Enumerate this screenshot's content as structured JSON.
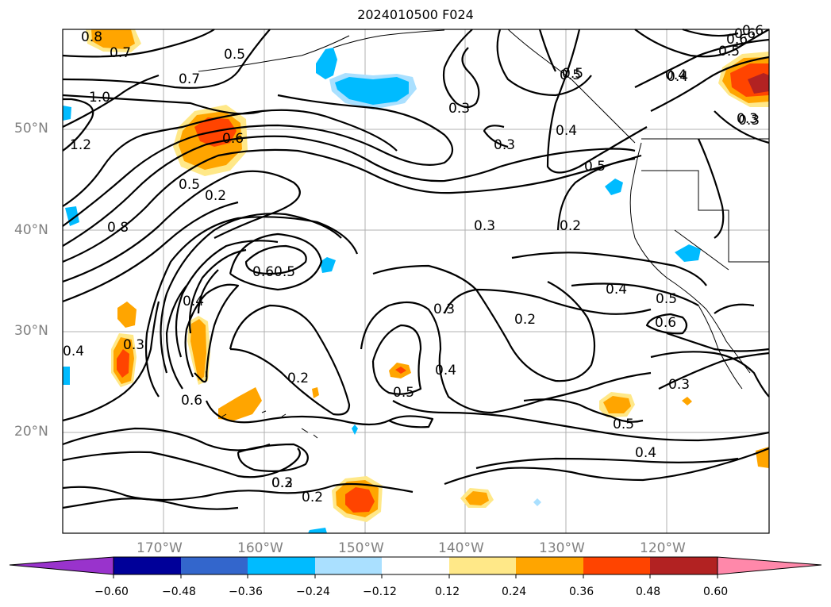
{
  "title": "2024010500 F024",
  "lat_labels": [
    "50°N",
    "40°N",
    "30°N",
    "20°N"
  ],
  "lon_labels": [
    "170°W",
    "160°W",
    "150°W",
    "140°W",
    "130°W",
    "120°W"
  ],
  "colorbar": {
    "ticks": [
      "−0.60",
      "−0.48",
      "−0.36",
      "−0.24",
      "−0.12",
      "0.12",
      "0.24",
      "0.36",
      "0.48",
      "0.60"
    ],
    "colors": [
      "#9933cc",
      "#000099",
      "#3366cc",
      "#00bbff",
      "#aae0ff",
      "#ffffff",
      "#ffe888",
      "#ffa500",
      "#ff4400",
      "#b22222",
      "#ff88aa"
    ]
  },
  "contour_labels": [
    "0.8",
    "0.7",
    "0.5",
    "0.7",
    "1.0",
    "1.2",
    "0.6",
    "0.5",
    "0.2",
    "0.8",
    "0.3",
    "0.3",
    "0.4",
    "0.5",
    "0.5",
    "0.6",
    "0.5",
    "0.4",
    "0.3",
    "0.2",
    "0.2",
    "0.3",
    "0.6",
    "0.5",
    "0.4",
    "0.3",
    "0.6",
    "0.5",
    "0.4",
    "0.4",
    "0.3",
    "0.2",
    "0.2",
    "0.6",
    "0.5",
    "0.4",
    "0.3",
    "0.2",
    "0.3",
    "0.4",
    "0.5",
    "0.6",
    "0.5",
    "0.6",
    "0.4",
    "0.3"
  ],
  "legend_colors": {
    "neg_light": "#aae0ff",
    "neg_mid": "#00bbff",
    "pos_light": "#ffe888",
    "pos_mid": "#ffa500",
    "pos_high": "#ff4400",
    "pos_max": "#b22222"
  }
}
